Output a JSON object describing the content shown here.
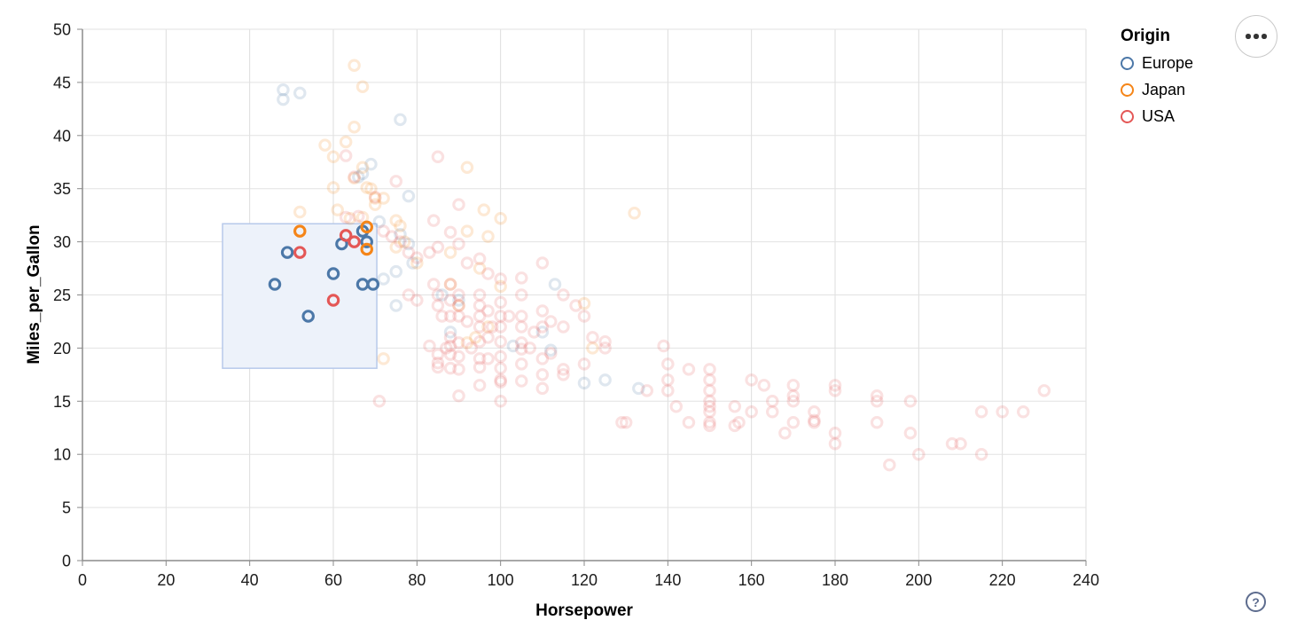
{
  "controls": {
    "menu_icon": "ellipsis-menu",
    "help_label": "?"
  },
  "chart_data": {
    "type": "scatter",
    "title": "",
    "xlabel": "Horsepower",
    "ylabel": "Miles_per_Gallon",
    "xlim": [
      0,
      240
    ],
    "ylim": [
      0,
      50
    ],
    "x_ticks": [
      0,
      20,
      40,
      60,
      80,
      100,
      120,
      140,
      160,
      180,
      200,
      220,
      240
    ],
    "y_ticks": [
      0,
      5,
      10,
      15,
      20,
      25,
      30,
      35,
      40,
      45,
      50
    ],
    "grid": true,
    "legend": {
      "title": "Origin",
      "position": "top-right",
      "entries": [
        {
          "label": "Europe",
          "color": "#4c78a8"
        },
        {
          "label": "Japan",
          "color": "#f58518"
        },
        {
          "label": "USA",
          "color": "#e45756"
        }
      ]
    },
    "brush_selection": {
      "x_range": [
        33.5,
        70.4
      ],
      "y_range": [
        18.1,
        31.7
      ],
      "fill": "#edf2fa",
      "stroke": "#b7c9ea"
    },
    "point_style": {
      "selected_opacity": 1,
      "unselected_opacity": 0.18,
      "radius": 5.7,
      "stroke_width": 3.1
    },
    "series": [
      {
        "name": "Europe",
        "color": "#4c78a8",
        "selected": [
          [
            46,
            26
          ],
          [
            49,
            29
          ],
          [
            54,
            23
          ],
          [
            60,
            27
          ],
          [
            62,
            29.8
          ],
          [
            67,
            31
          ],
          [
            68,
            30
          ],
          [
            67,
            26
          ],
          [
            69.5,
            26
          ]
        ],
        "unselected": [
          [
            48,
            44.3
          ],
          [
            48,
            43.4
          ],
          [
            52,
            44
          ],
          [
            76,
            41.5
          ],
          [
            67,
            36.4
          ],
          [
            69,
            37.3
          ],
          [
            66,
            36.1
          ],
          [
            78,
            34.3
          ],
          [
            71,
            31.9
          ],
          [
            76,
            30.7
          ],
          [
            78,
            29.8
          ],
          [
            79,
            28
          ],
          [
            75,
            27.2
          ],
          [
            72,
            26.5
          ],
          [
            75,
            24
          ],
          [
            86,
            25
          ],
          [
            90,
            24.5
          ],
          [
            88,
            21.5
          ],
          [
            103,
            20.2
          ],
          [
            110,
            21.5
          ],
          [
            113,
            26
          ],
          [
            112,
            19.8
          ],
          [
            120,
            16.7
          ],
          [
            125,
            17
          ],
          [
            133,
            16.2
          ]
        ]
      },
      {
        "name": "Japan",
        "color": "#f58518",
        "selected": [
          [
            52,
            31
          ],
          [
            68,
            31.4
          ],
          [
            68,
            29.3
          ]
        ],
        "unselected": [
          [
            65,
            46.6
          ],
          [
            67,
            44.6
          ],
          [
            65,
            40.8
          ],
          [
            58,
            39.1
          ],
          [
            63,
            39.4
          ],
          [
            60,
            38
          ],
          [
            67,
            37
          ],
          [
            68,
            35.1
          ],
          [
            60,
            35.1
          ],
          [
            69,
            35
          ],
          [
            65,
            36
          ],
          [
            70,
            34.1
          ],
          [
            72,
            34.1
          ],
          [
            70,
            33.5
          ],
          [
            52,
            32.8
          ],
          [
            61,
            33
          ],
          [
            64,
            32.2
          ],
          [
            67,
            32.3
          ],
          [
            92,
            37
          ],
          [
            75,
            32
          ],
          [
            76,
            31.5
          ],
          [
            77,
            30
          ],
          [
            75,
            29.5
          ],
          [
            80,
            28
          ],
          [
            88,
            29
          ],
          [
            92,
            31
          ],
          [
            96,
            33
          ],
          [
            100,
            32.2
          ],
          [
            97,
            30.5
          ],
          [
            95,
            27.5
          ],
          [
            88,
            26
          ],
          [
            100,
            25.8
          ],
          [
            120,
            24.2
          ],
          [
            90,
            24
          ],
          [
            97,
            22
          ],
          [
            94,
            21
          ],
          [
            92,
            20.5
          ],
          [
            72,
            19
          ],
          [
            122,
            20
          ],
          [
            132,
            32.7
          ]
        ]
      },
      {
        "name": "USA",
        "color": "#e45756",
        "selected": [
          [
            52,
            29
          ],
          [
            63,
            30.6
          ],
          [
            65,
            30
          ],
          [
            60,
            24.5
          ]
        ],
        "unselected": [
          [
            63,
            38.1
          ],
          [
            65,
            36.1
          ],
          [
            70,
            34.2
          ],
          [
            75,
            35.7
          ],
          [
            85,
            38
          ],
          [
            90,
            33.5
          ],
          [
            84,
            32
          ],
          [
            63,
            32.3
          ],
          [
            66,
            32.4
          ],
          [
            72,
            31
          ],
          [
            74,
            30.5
          ],
          [
            76,
            30
          ],
          [
            78,
            29
          ],
          [
            80,
            28.5
          ],
          [
            83,
            29
          ],
          [
            85,
            29.5
          ],
          [
            88,
            30.9
          ],
          [
            90,
            29.8
          ],
          [
            92,
            28
          ],
          [
            95,
            28.4
          ],
          [
            97,
            27
          ],
          [
            100,
            26.5
          ],
          [
            105,
            26.6
          ],
          [
            110,
            28
          ],
          [
            78,
            25
          ],
          [
            80,
            24.5
          ],
          [
            84,
            26
          ],
          [
            85,
            25
          ],
          [
            85,
            24
          ],
          [
            86,
            23
          ],
          [
            88,
            26
          ],
          [
            88,
            24.5
          ],
          [
            88,
            23
          ],
          [
            90,
            25
          ],
          [
            90,
            24
          ],
          [
            90,
            23
          ],
          [
            92,
            22.5
          ],
          [
            95,
            25
          ],
          [
            95,
            24
          ],
          [
            95,
            23
          ],
          [
            95,
            22
          ],
          [
            97,
            23.5
          ],
          [
            98,
            22
          ],
          [
            100,
            24.3
          ],
          [
            100,
            23
          ],
          [
            100,
            22
          ],
          [
            102,
            23
          ],
          [
            105,
            25
          ],
          [
            105,
            23
          ],
          [
            105,
            22
          ],
          [
            108,
            21.5
          ],
          [
            110,
            23.5
          ],
          [
            110,
            22
          ],
          [
            112,
            22.5
          ],
          [
            115,
            25
          ],
          [
            115,
            22
          ],
          [
            118,
            24
          ],
          [
            120,
            23
          ],
          [
            122,
            21
          ],
          [
            125,
            20.6
          ],
          [
            83,
            20.2
          ],
          [
            85,
            19.4
          ],
          [
            85,
            18.6
          ],
          [
            85,
            18.2
          ],
          [
            87,
            20
          ],
          [
            88,
            21
          ],
          [
            88,
            20.2
          ],
          [
            88,
            19.4
          ],
          [
            88,
            18.1
          ],
          [
            90,
            20.5
          ],
          [
            90,
            19.2
          ],
          [
            90,
            18
          ],
          [
            93,
            20
          ],
          [
            95,
            20.6
          ],
          [
            95,
            19
          ],
          [
            95,
            18.2
          ],
          [
            97,
            21
          ],
          [
            97,
            19
          ],
          [
            100,
            20.6
          ],
          [
            100,
            19.2
          ],
          [
            100,
            18.1
          ],
          [
            100,
            17
          ],
          [
            105,
            20.5
          ],
          [
            105,
            19.9
          ],
          [
            105,
            18.5
          ],
          [
            107,
            20
          ],
          [
            110,
            19
          ],
          [
            110,
            17.5
          ],
          [
            112,
            19.5
          ],
          [
            115,
            18
          ],
          [
            115,
            17.5
          ],
          [
            120,
            18.5
          ],
          [
            90,
            15.5
          ],
          [
            95,
            16.5
          ],
          [
            100,
            15
          ],
          [
            100,
            16.8
          ],
          [
            105,
            16.9
          ],
          [
            110,
            16.2
          ],
          [
            71,
            15
          ],
          [
            125,
            20
          ],
          [
            129,
            13
          ],
          [
            130,
            13
          ],
          [
            135,
            16
          ],
          [
            139,
            20.2
          ],
          [
            140,
            18.5
          ],
          [
            140,
            17
          ],
          [
            140,
            16
          ],
          [
            142,
            14.5
          ],
          [
            145,
            18
          ],
          [
            145,
            13
          ],
          [
            150,
            18
          ],
          [
            150,
            17
          ],
          [
            150,
            16
          ],
          [
            150,
            15
          ],
          [
            150,
            14.5
          ],
          [
            150,
            14
          ],
          [
            150,
            13
          ],
          [
            150,
            12.7
          ],
          [
            156,
            14.5
          ],
          [
            157,
            13
          ],
          [
            156,
            12.7
          ],
          [
            160,
            17
          ],
          [
            160,
            14
          ],
          [
            163,
            16.5
          ],
          [
            165,
            15
          ],
          [
            165,
            14
          ],
          [
            168,
            12
          ],
          [
            170,
            16.5
          ],
          [
            170,
            15.5
          ],
          [
            170,
            15
          ],
          [
            170,
            13
          ],
          [
            175,
            14
          ],
          [
            175,
            13.2
          ],
          [
            175,
            13
          ],
          [
            180,
            16.5
          ],
          [
            180,
            16
          ],
          [
            180,
            12
          ],
          [
            180,
            11
          ],
          [
            190,
            15.5
          ],
          [
            190,
            15
          ],
          [
            190,
            13
          ],
          [
            193,
            9
          ],
          [
            198,
            15
          ],
          [
            198,
            12
          ],
          [
            200,
            10
          ],
          [
            208,
            11
          ],
          [
            210,
            11
          ],
          [
            215,
            10
          ],
          [
            215,
            14
          ],
          [
            220,
            14
          ],
          [
            225,
            14
          ],
          [
            230,
            16
          ]
        ]
      }
    ]
  }
}
